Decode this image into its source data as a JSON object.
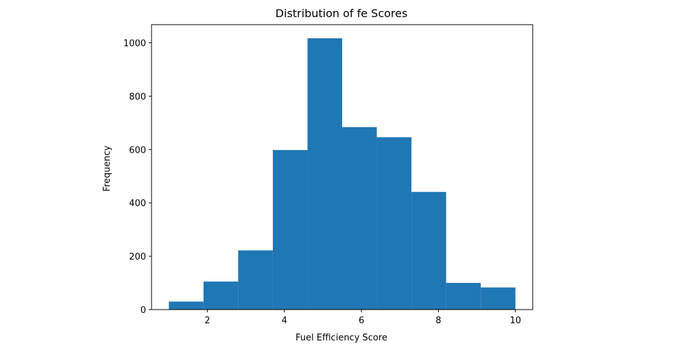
{
  "chart_data": {
    "type": "bar",
    "title": "Distribution of fe Scores",
    "xlabel": "Fuel Efficiency Score",
    "ylabel": "Frequency",
    "bin_edges": [
      1.0,
      1.9,
      2.8,
      3.7,
      4.6,
      5.5,
      6.4,
      7.3,
      8.2,
      9.1,
      10.0
    ],
    "values": [
      30,
      105,
      222,
      598,
      1017,
      684,
      646,
      441,
      100,
      83
    ],
    "xlim": [
      0.55,
      10.45
    ],
    "ylim": [
      0,
      1068
    ],
    "xticks": [
      2,
      4,
      6,
      8,
      10
    ],
    "yticks": [
      0,
      200,
      400,
      600,
      800,
      1000
    ],
    "bar_color": "#1f77b4",
    "grid": false,
    "legend": "none"
  }
}
